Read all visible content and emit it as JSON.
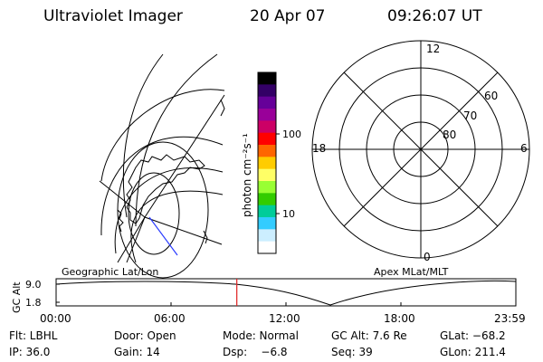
{
  "header": {
    "title": "Ultraviolet Imager",
    "date": "20 Apr 07",
    "time": "09:26:07 UT"
  },
  "colorbar": {
    "label": "photon cm⁻²s⁻¹",
    "ticks": [
      "100",
      "10"
    ],
    "colors": [
      "#000000",
      "#330066",
      "#660099",
      "#990099",
      "#cc0066",
      "#ff0000",
      "#ff6600",
      "#ffcc00",
      "#ffff66",
      "#99ff33",
      "#33cc00",
      "#00cc99",
      "#33ccff",
      "#cceeff",
      "#ffffff"
    ]
  },
  "polar_plot": {
    "mlt_labels": {
      "top": "12",
      "left": "18",
      "right": "6",
      "bottom": "0"
    },
    "lat_labels": [
      "60",
      "70",
      "80"
    ]
  },
  "timeline": {
    "left_label": "Geographic Lat/Lon",
    "right_label": "Apex MLat/MLT",
    "axis_title": "GC Alt",
    "y_ticks": [
      "9.0",
      "1.8"
    ],
    "x_ticks": [
      "00:00",
      "06:00",
      "12:00",
      "18:00",
      "23:59"
    ],
    "current_time_marker": "09:26",
    "marker_color": "#e02020"
  },
  "footer": {
    "row1": [
      {
        "label": "Flt: LBHL"
      },
      {
        "label": "Door: Open"
      },
      {
        "label": "Mode: Normal"
      },
      {
        "label": "GC Alt: 7.6 Re"
      },
      {
        "label": "GLat: −68.2"
      }
    ],
    "row2": [
      {
        "label": "IP: 36.0"
      },
      {
        "label": "Gain: 14"
      },
      {
        "label": "Dsp:    −6.8"
      },
      {
        "label": "Seq: 39"
      },
      {
        "label": "GLon: 211.4"
      }
    ]
  }
}
